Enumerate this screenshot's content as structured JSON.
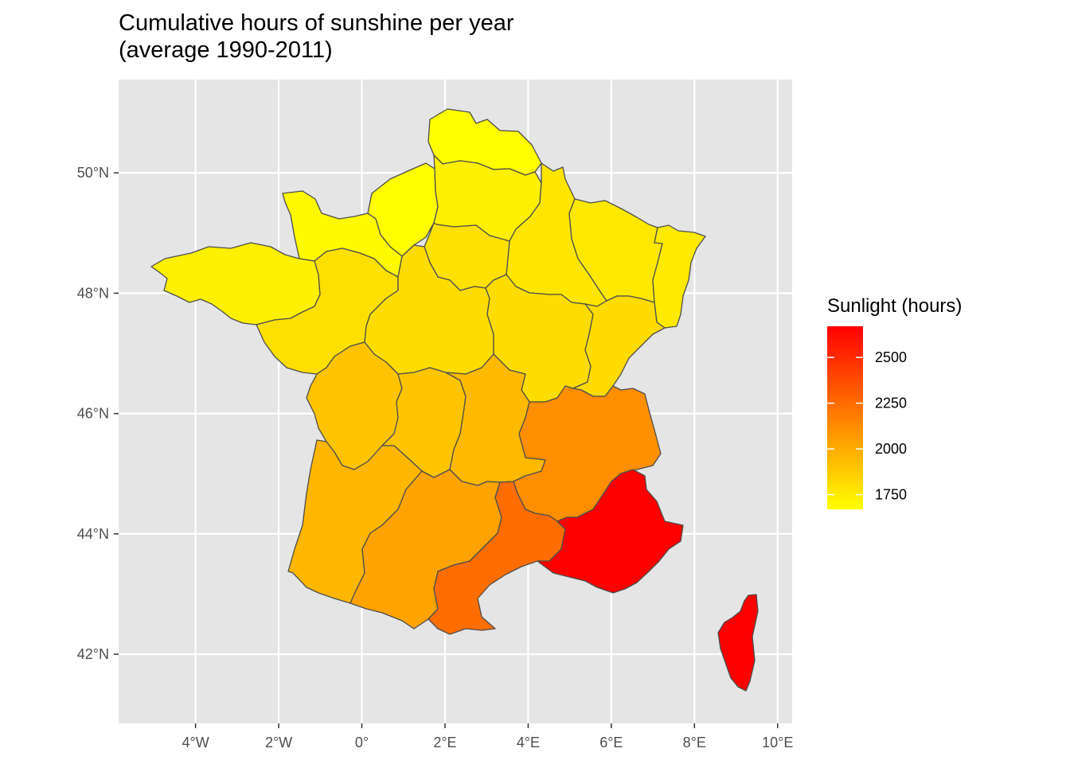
{
  "title": {
    "line1": "Cumulative hours of sunshine per year",
    "line2": "(average 1990-2011)"
  },
  "axes": {
    "x_ticks": [
      {
        "value": -4,
        "label": "4°W"
      },
      {
        "value": -2,
        "label": "2°W"
      },
      {
        "value": 0,
        "label": "0°"
      },
      {
        "value": 2,
        "label": "2°E"
      },
      {
        "value": 4,
        "label": "4°E"
      },
      {
        "value": 6,
        "label": "6°E"
      },
      {
        "value": 8,
        "label": "8°E"
      },
      {
        "value": 10,
        "label": "10°E"
      }
    ],
    "y_ticks": [
      {
        "value": 50,
        "label": "50°N"
      },
      {
        "value": 48,
        "label": "48°N"
      },
      {
        "value": 46,
        "label": "46°N"
      },
      {
        "value": 44,
        "label": "44°N"
      },
      {
        "value": 42,
        "label": "42°N"
      }
    ],
    "xlim": [
      -5.85,
      10.35
    ],
    "ylim": [
      40.85,
      51.55
    ]
  },
  "legend": {
    "title": "Sunlight (hours)",
    "labels": [
      {
        "value": 2500,
        "label": "2500"
      },
      {
        "value": 2250,
        "label": "2250"
      },
      {
        "value": 2000,
        "label": "2000"
      },
      {
        "value": 1750,
        "label": "1750"
      }
    ],
    "min": 1670,
    "max": 2670,
    "color_low": "#ffff00",
    "color_high": "#ff0000"
  },
  "colors": {
    "panel": "#e5e5e5",
    "grid": "#ffffff",
    "region_border": "#4d4d4d"
  },
  "regions": [
    {
      "id": "nord-pas-de-calais",
      "sunlight": 1680,
      "color": "#ffff00"
    },
    {
      "id": "haute-normandie",
      "sunlight": 1700,
      "color": "#fffe00"
    },
    {
      "id": "basse-normandie",
      "sunlight": 1690,
      "color": "#fffa00"
    },
    {
      "id": "picardie",
      "sunlight": 1740,
      "color": "#fff000"
    },
    {
      "id": "bretagne",
      "sunlight": 1750,
      "color": "#ffef00"
    },
    {
      "id": "champagne-ardenne",
      "sunlight": 1780,
      "color": "#ffe600"
    },
    {
      "id": "lorraine",
      "sunlight": 1770,
      "color": "#ffe800"
    },
    {
      "id": "alsace",
      "sunlight": 1760,
      "color": "#ffea00"
    },
    {
      "id": "ile-de-france",
      "sunlight": 1800,
      "color": "#ffe000"
    },
    {
      "id": "pays-de-la-loire",
      "sunlight": 1850,
      "color": "#ffdf00"
    },
    {
      "id": "centre",
      "sunlight": 1850,
      "color": "#ffdc00"
    },
    {
      "id": "bourgogne",
      "sunlight": 1840,
      "color": "#ffdc00"
    },
    {
      "id": "franche-comte",
      "sunlight": 1860,
      "color": "#ffdb00"
    },
    {
      "id": "poitou-charentes",
      "sunlight": 2010,
      "color": "#ffc300"
    },
    {
      "id": "limousin",
      "sunlight": 1990,
      "color": "#ffc400"
    },
    {
      "id": "auvergne",
      "sunlight": 2030,
      "color": "#ffb900"
    },
    {
      "id": "rhone-alpes",
      "sunlight": 2210,
      "color": "#ff8e00"
    },
    {
      "id": "aquitaine",
      "sunlight": 2040,
      "color": "#ffb600"
    },
    {
      "id": "midi-pyrenees",
      "sunlight": 2140,
      "color": "#ffa300"
    },
    {
      "id": "languedoc-roussillon",
      "sunlight": 2430,
      "color": "#ff6d00"
    },
    {
      "id": "provence-alpes-cote-d-azur",
      "sunlight": 2650,
      "color": "#ff0000"
    },
    {
      "id": "corse",
      "sunlight": 2650,
      "color": "#ff0000"
    }
  ]
}
